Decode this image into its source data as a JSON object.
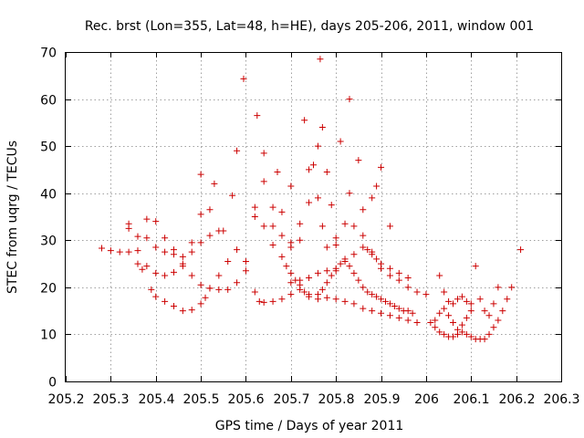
{
  "chart_data": {
    "type": "scatter",
    "title": "Rec. brst (Lon=355, Lat=48, h=HE), days 205-206, 2011, window 001",
    "xlabel": "GPS time / Days of year 2011",
    "ylabel": "STEC from uqrg / TECUs",
    "xlim": [
      205.2,
      206.3
    ],
    "ylim": [
      0,
      70
    ],
    "x_ticks": [
      205.2,
      205.3,
      205.4,
      205.5,
      205.6,
      205.7,
      205.8,
      205.9,
      206,
      206.1,
      206.2,
      206.3
    ],
    "x_tick_labels": [
      "205.2",
      "205.3",
      "205.4",
      "205.5",
      "205.6",
      "205.7",
      "205.8",
      "205.9",
      "206",
      "206.1",
      "206.2",
      "206.3"
    ],
    "y_ticks": [
      0,
      10,
      20,
      30,
      40,
      50,
      60,
      70
    ],
    "y_tick_labels": [
      "0",
      "10",
      "20",
      "30",
      "40",
      "50",
      "60",
      "70"
    ],
    "grid": true,
    "marker": "+",
    "color": "#cc0000",
    "series": [
      {
        "name": "STEC",
        "points": [
          [
            205.28,
            28.3
          ],
          [
            205.3,
            27.8
          ],
          [
            205.32,
            27.5
          ],
          [
            205.34,
            27.5
          ],
          [
            205.36,
            27.8
          ],
          [
            205.38,
            24.5
          ],
          [
            205.4,
            23.0
          ],
          [
            205.42,
            22.5
          ],
          [
            205.44,
            23.2
          ],
          [
            205.46,
            24.5
          ],
          [
            205.48,
            27.5
          ],
          [
            205.5,
            29.5
          ],
          [
            205.52,
            31.0
          ],
          [
            205.54,
            32.0
          ],
          [
            205.34,
            32.5
          ],
          [
            205.36,
            30.8
          ],
          [
            205.38,
            30.5
          ],
          [
            205.4,
            28.5
          ],
          [
            205.42,
            27.5
          ],
          [
            205.44,
            27.0
          ],
          [
            205.46,
            25.0
          ],
          [
            205.48,
            22.5
          ],
          [
            205.5,
            20.5
          ],
          [
            205.52,
            19.8
          ],
          [
            205.54,
            19.5
          ],
          [
            205.56,
            19.5
          ],
          [
            205.58,
            21.0
          ],
          [
            205.6,
            23.5
          ],
          [
            205.36,
            25.0
          ],
          [
            205.37,
            23.8
          ],
          [
            205.39,
            19.5
          ],
          [
            205.4,
            18.0
          ],
          [
            205.42,
            17.0
          ],
          [
            205.44,
            16.0
          ],
          [
            205.46,
            15.0
          ],
          [
            205.48,
            15.2
          ],
          [
            205.5,
            16.5
          ],
          [
            205.51,
            17.8
          ],
          [
            205.52,
            19.8
          ],
          [
            205.54,
            22.5
          ],
          [
            205.56,
            25.5
          ],
          [
            205.58,
            28.0
          ],
          [
            205.34,
            33.5
          ],
          [
            205.38,
            34.5
          ],
          [
            205.4,
            34.0
          ],
          [
            205.42,
            30.5
          ],
          [
            205.44,
            28.0
          ],
          [
            205.46,
            26.5
          ],
          [
            205.48,
            29.5
          ],
          [
            205.5,
            35.5
          ],
          [
            205.52,
            36.5
          ],
          [
            205.55,
            32.0
          ],
          [
            205.57,
            39.5
          ],
          [
            205.58,
            49.0
          ],
          [
            205.595,
            64.3
          ],
          [
            205.62,
            37.0
          ],
          [
            205.64,
            33.0
          ],
          [
            205.66,
            29.0
          ],
          [
            205.5,
            44.0
          ],
          [
            205.53,
            42.0
          ],
          [
            205.6,
            25.5
          ],
          [
            205.62,
            19.0
          ],
          [
            205.63,
            17.0
          ],
          [
            205.64,
            16.8
          ],
          [
            205.66,
            17.0
          ],
          [
            205.68,
            17.5
          ],
          [
            205.7,
            18.5
          ],
          [
            205.72,
            19.5
          ],
          [
            205.74,
            18.0
          ],
          [
            205.76,
            17.5
          ],
          [
            205.78,
            17.8
          ],
          [
            205.8,
            17.5
          ],
          [
            205.82,
            17.0
          ],
          [
            205.84,
            16.5
          ],
          [
            205.86,
            15.5
          ],
          [
            205.88,
            15.0
          ],
          [
            205.9,
            14.5
          ],
          [
            205.92,
            14.0
          ],
          [
            205.94,
            13.5
          ],
          [
            205.96,
            13.0
          ],
          [
            205.98,
            12.5
          ],
          [
            205.625,
            56.5
          ],
          [
            205.64,
            48.5
          ],
          [
            205.64,
            42.5
          ],
          [
            205.66,
            37.0
          ],
          [
            205.67,
            44.5
          ],
          [
            205.68,
            36.0
          ],
          [
            205.7,
            41.5
          ],
          [
            205.7,
            28.5
          ],
          [
            205.72,
            30.0
          ],
          [
            205.73,
            55.5
          ],
          [
            205.75,
            46.0
          ],
          [
            205.74,
            45.0
          ],
          [
            205.76,
            50.0
          ],
          [
            205.765,
            68.5
          ],
          [
            205.77,
            54.0
          ],
          [
            205.78,
            44.5
          ],
          [
            205.79,
            37.5
          ],
          [
            205.8,
            30.5
          ],
          [
            205.81,
            51.0
          ],
          [
            205.83,
            60.0
          ],
          [
            205.83,
            40.0
          ],
          [
            205.85,
            47.0
          ],
          [
            205.86,
            36.5
          ],
          [
            205.88,
            39.0
          ],
          [
            205.89,
            41.5
          ],
          [
            205.9,
            45.5
          ],
          [
            205.92,
            33.0
          ],
          [
            205.62,
            35.0
          ],
          [
            205.66,
            33.0
          ],
          [
            205.68,
            31.0
          ],
          [
            205.7,
            29.5
          ],
          [
            205.72,
            33.5
          ],
          [
            205.74,
            38.0
          ],
          [
            205.76,
            39.0
          ],
          [
            205.77,
            33.0
          ],
          [
            205.78,
            28.5
          ],
          [
            205.8,
            29.0
          ],
          [
            205.82,
            33.5
          ],
          [
            205.84,
            33.0
          ],
          [
            205.86,
            31.0
          ],
          [
            205.87,
            28.0
          ],
          [
            205.88,
            27.5
          ],
          [
            205.89,
            26.0
          ],
          [
            205.9,
            24.0
          ],
          [
            205.92,
            22.5
          ],
          [
            205.94,
            21.5
          ],
          [
            205.96,
            20.0
          ],
          [
            205.98,
            19.0
          ],
          [
            205.68,
            26.5
          ],
          [
            205.69,
            24.5
          ],
          [
            205.7,
            23.0
          ],
          [
            205.71,
            21.5
          ],
          [
            205.72,
            20.5
          ],
          [
            205.73,
            19.0
          ],
          [
            205.74,
            18.5
          ],
          [
            205.76,
            18.5
          ],
          [
            205.77,
            19.5
          ],
          [
            205.78,
            21.0
          ],
          [
            205.79,
            22.5
          ],
          [
            205.8,
            23.5
          ],
          [
            205.81,
            25.0
          ],
          [
            205.82,
            26.0
          ],
          [
            205.83,
            24.5
          ],
          [
            205.84,
            23.0
          ],
          [
            205.85,
            21.5
          ],
          [
            205.86,
            20.0
          ],
          [
            205.87,
            19.0
          ],
          [
            205.88,
            18.5
          ],
          [
            205.89,
            18.0
          ],
          [
            205.9,
            17.5
          ],
          [
            205.91,
            17.0
          ],
          [
            205.92,
            16.5
          ],
          [
            205.93,
            16.0
          ],
          [
            205.94,
            15.5
          ],
          [
            205.95,
            15.0
          ],
          [
            205.96,
            15.0
          ],
          [
            205.97,
            14.5
          ],
          [
            205.7,
            21.0
          ],
          [
            205.72,
            21.5
          ],
          [
            205.74,
            22.0
          ],
          [
            205.76,
            23.0
          ],
          [
            205.78,
            23.5
          ],
          [
            205.8,
            24.0
          ],
          [
            205.82,
            25.5
          ],
          [
            205.84,
            27.0
          ],
          [
            205.86,
            28.5
          ],
          [
            205.88,
            27.0
          ],
          [
            205.9,
            25.0
          ],
          [
            205.92,
            24.0
          ],
          [
            205.94,
            23.0
          ],
          [
            205.96,
            22.0
          ],
          [
            206.0,
            18.5
          ],
          [
            206.01,
            12.5
          ],
          [
            206.02,
            11.5
          ],
          [
            206.03,
            10.5
          ],
          [
            206.04,
            10.0
          ],
          [
            206.05,
            9.5
          ],
          [
            206.06,
            9.5
          ],
          [
            206.07,
            10.0
          ],
          [
            206.08,
            10.5
          ],
          [
            206.09,
            10.0
          ],
          [
            206.1,
            9.5
          ],
          [
            206.11,
            9.0
          ],
          [
            206.12,
            9.0
          ],
          [
            206.13,
            9.0
          ],
          [
            206.14,
            10.0
          ],
          [
            206.15,
            11.5
          ],
          [
            206.16,
            13.0
          ],
          [
            206.17,
            15.0
          ],
          [
            206.18,
            17.5
          ],
          [
            206.19,
            20.0
          ],
          [
            206.21,
            28.0
          ],
          [
            206.03,
            22.5
          ],
          [
            206.04,
            19.0
          ],
          [
            206.05,
            17.0
          ],
          [
            206.06,
            16.5
          ],
          [
            206.07,
            17.5
          ],
          [
            206.08,
            18.0
          ],
          [
            206.09,
            17.0
          ],
          [
            206.1,
            16.5
          ],
          [
            206.11,
            24.5
          ],
          [
            206.12,
            17.5
          ],
          [
            206.13,
            15.0
          ],
          [
            206.14,
            14.0
          ],
          [
            206.15,
            16.5
          ],
          [
            206.16,
            20.0
          ],
          [
            206.02,
            13.0
          ],
          [
            206.03,
            14.5
          ],
          [
            206.04,
            15.5
          ],
          [
            206.05,
            14.0
          ],
          [
            206.06,
            12.5
          ],
          [
            206.07,
            11.0
          ],
          [
            206.08,
            12.0
          ],
          [
            206.09,
            13.5
          ],
          [
            206.1,
            15.0
          ]
        ]
      }
    ]
  }
}
